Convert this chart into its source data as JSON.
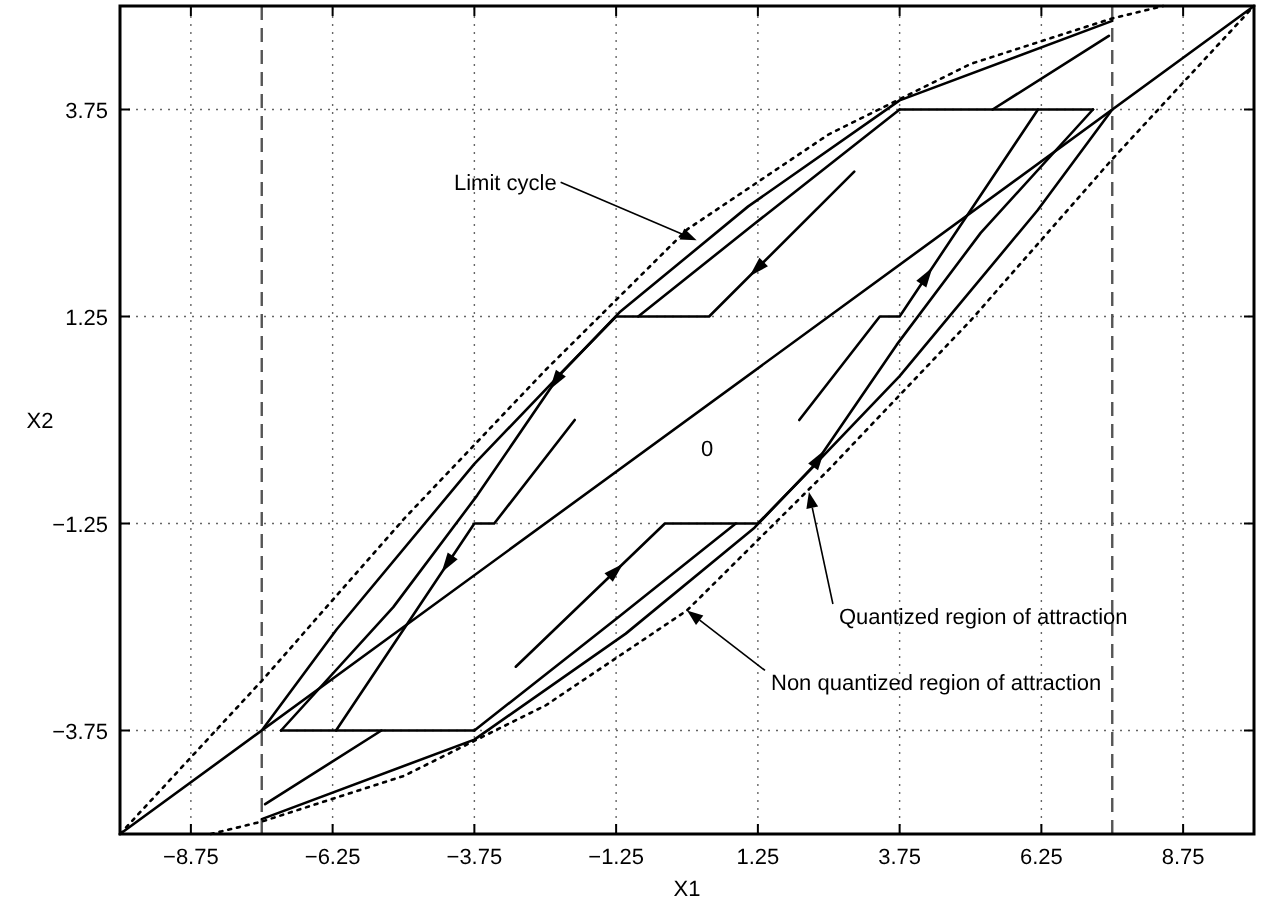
{
  "chart_data": {
    "type": "line",
    "xlabel": "X1",
    "ylabel": "X2",
    "xlim": [
      -10,
      10
    ],
    "ylim": [
      -5,
      5
    ],
    "xticks": [
      -8.75,
      -6.25,
      -3.75,
      -1.25,
      1.25,
      3.75,
      6.25,
      8.75
    ],
    "yticks": [
      -3.75,
      -1.25,
      1.25,
      3.75
    ],
    "grid": true,
    "line_style": "solid",
    "marker": "none",
    "series": [
      {
        "color": "#000000",
        "x": [
          -10,
          10
        ],
        "values": [
          -5,
          5
        ]
      },
      {
        "color": "#000000",
        "line_style": "dotted",
        "x": [
          -10,
          -7.5,
          -5,
          -2.5,
          0,
          2.5,
          5,
          7.5,
          8.4
        ],
        "values": [
          -5,
          -3.15,
          -1.2,
          0.6,
          2.3,
          3.45,
          4.3,
          4.85,
          5
        ]
      },
      {
        "color": "#000000",
        "line_style": "dotted",
        "x": [
          -8.4,
          -7.5,
          -5,
          -2.5,
          0,
          2.5,
          5,
          7.5,
          10
        ],
        "values": [
          -5,
          -4.85,
          -4.3,
          -3.45,
          -2.3,
          -0.6,
          1.2,
          3.15,
          5
        ]
      },
      {
        "color": "#000000",
        "x": [
          -7.5,
          -6.18,
          -3.75,
          -1.19,
          1.08,
          3.75,
          7.5
        ],
        "values": [
          -3.75,
          -2.53,
          -0.53,
          1.3,
          2.58,
          3.86,
          4.82
        ]
      },
      {
        "color": "#000000",
        "x": [
          -7.5,
          -3.75,
          -1.08,
          1.19,
          3.75,
          6.18,
          7.5
        ],
        "values": [
          -4.82,
          -3.86,
          -2.58,
          -1.3,
          0.53,
          2.53,
          3.75
        ]
      },
      {
        "color": "#000000",
        "x": [
          -7.16,
          -3.75
        ],
        "values": [
          -3.75,
          -3.75
        ]
      },
      {
        "color": "#000000",
        "x": [
          -3.75,
          -1.19,
          0.86,
          1.25,
          2.22,
          3.7,
          5.18,
          7.16
        ],
        "values": [
          -3.75,
          -2.37,
          -1.25,
          -1.25,
          -0.57,
          0.91,
          2.26,
          3.75
        ]
      },
      {
        "color": "#000000",
        "x": [
          7.16,
          3.75
        ],
        "values": [
          3.75,
          3.75
        ]
      },
      {
        "color": "#000000",
        "x": [
          3.75,
          1.19,
          -0.86,
          -1.25,
          -2.22,
          -3.7,
          -5.18,
          -7.16
        ],
        "values": [
          3.75,
          2.37,
          1.25,
          1.25,
          0.57,
          -0.91,
          -2.26,
          -3.75
        ]
      },
      {
        "color": "#000000",
        "x": [
          1.98,
          3.4,
          3.75,
          6.19
        ],
        "values": [
          0,
          1.25,
          1.25,
          3.75
        ]
      },
      {
        "color": "#000000",
        "x": [
          7.44,
          5.39
        ],
        "values": [
          4.64,
          3.75
        ]
      },
      {
        "color": "#000000",
        "x": [
          -1.98,
          -3.4,
          -3.75,
          -6.19
        ],
        "values": [
          0,
          -1.25,
          -1.25,
          -3.75
        ]
      },
      {
        "color": "#000000",
        "x": [
          -7.44,
          -5.39
        ],
        "values": [
          -4.64,
          -3.75
        ]
      },
      {
        "color": "#000000",
        "x": [
          2.95,
          0.39,
          -0.86
        ],
        "values": [
          3.0,
          1.25,
          1.25
        ]
      },
      {
        "color": "#000000",
        "x": [
          -3.02,
          -0.39,
          0.86
        ],
        "values": [
          -2.98,
          -1.25,
          -1.25
        ]
      }
    ],
    "ref_lines": [
      {
        "axis": "x",
        "value": -7.5,
        "color": "#555555",
        "line_style": "dashed"
      },
      {
        "axis": "x",
        "value": 7.5,
        "color": "#555555",
        "line_style": "dashed"
      }
    ],
    "annotations": [
      "0",
      {
        "text": "Limit cycle",
        "x": 0.17,
        "y": 2.17
      },
      {
        "text": "Quantized region of attraction",
        "x": 2.15,
        "y": -0.87
      },
      {
        "text": "Non quantized region of attraction",
        "x": 0,
        "y": -2.3
      }
    ]
  }
}
